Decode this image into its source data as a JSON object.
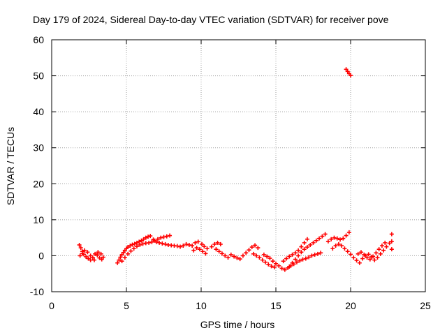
{
  "colors": {
    "series": "#ff0000",
    "grid": "#a0a0a0",
    "frame": "#000000",
    "background": "#ffffff"
  },
  "chart_data": {
    "type": "scatter",
    "title": "Day 179 of 2024, Sidereal Day-to-day VTEC variation (SDTVAR) for receiver pove",
    "xlabel": "GPS time / hours",
    "ylabel": "SDTVAR / TECUs",
    "xlim": [
      0,
      25
    ],
    "ylim": [
      -10,
      60
    ],
    "xticks": [
      0,
      5,
      10,
      15,
      20,
      25
    ],
    "yticks": [
      -10,
      0,
      10,
      20,
      30,
      40,
      50,
      60
    ],
    "xtick_labels": [
      "0",
      "5",
      "10",
      "15",
      "20",
      "25"
    ],
    "ytick_labels": [
      "-10",
      "0",
      "10",
      "20",
      "30",
      "40",
      "50",
      "60"
    ],
    "grid": true,
    "marker": "+",
    "series": [
      {
        "name": "SDTVAR",
        "points": [
          [
            1.85,
            3.0
          ],
          [
            1.95,
            2.2
          ],
          [
            2.05,
            1.2
          ],
          [
            2.15,
            0.4
          ],
          [
            2.3,
            -0.3
          ],
          [
            2.45,
            -0.8
          ],
          [
            2.6,
            -1.2
          ],
          [
            1.9,
            0.0
          ],
          [
            2.05,
            0.6
          ],
          [
            2.2,
            1.5
          ],
          [
            2.4,
            1.0
          ],
          [
            2.6,
            0.0
          ],
          [
            2.75,
            -0.5
          ],
          [
            2.9,
            0.5
          ],
          [
            3.05,
            0.2
          ],
          [
            3.2,
            -0.6
          ],
          [
            3.35,
            -1.0
          ],
          [
            3.1,
            1.0
          ],
          [
            3.3,
            0.5
          ],
          [
            2.85,
            -1.2
          ],
          [
            3.45,
            -0.4
          ],
          [
            4.4,
            -2.0
          ],
          [
            4.5,
            -1.2
          ],
          [
            4.6,
            -0.4
          ],
          [
            4.7,
            0.3
          ],
          [
            4.8,
            0.9
          ],
          [
            4.9,
            1.5
          ],
          [
            5.0,
            2.0
          ],
          [
            5.1,
            2.4
          ],
          [
            5.25,
            2.8
          ],
          [
            5.4,
            3.1
          ],
          [
            5.55,
            3.3
          ],
          [
            5.7,
            3.6
          ],
          [
            5.85,
            3.9
          ],
          [
            6.0,
            4.2
          ],
          [
            6.15,
            4.6
          ],
          [
            6.3,
            5.0
          ],
          [
            6.45,
            5.3
          ],
          [
            6.6,
            5.5
          ],
          [
            4.7,
            -1.5
          ],
          [
            4.9,
            -0.5
          ],
          [
            5.1,
            0.5
          ],
          [
            5.3,
            1.3
          ],
          [
            5.5,
            2.0
          ],
          [
            5.7,
            2.6
          ],
          [
            5.9,
            3.0
          ],
          [
            6.1,
            3.3
          ],
          [
            6.3,
            3.5
          ],
          [
            6.5,
            3.6
          ],
          [
            6.7,
            3.8
          ],
          [
            6.9,
            4.2
          ],
          [
            7.1,
            4.6
          ],
          [
            7.3,
            5.0
          ],
          [
            7.5,
            5.2
          ],
          [
            7.7,
            5.4
          ],
          [
            7.9,
            5.6
          ],
          [
            6.8,
            4.5
          ],
          [
            7.0,
            3.8
          ],
          [
            7.2,
            3.6
          ],
          [
            7.4,
            3.4
          ],
          [
            7.6,
            3.2
          ],
          [
            7.8,
            3.0
          ],
          [
            8.0,
            2.9
          ],
          [
            8.2,
            2.8
          ],
          [
            8.4,
            2.7
          ],
          [
            8.6,
            2.5
          ],
          [
            8.8,
            2.8
          ],
          [
            9.0,
            3.2
          ],
          [
            9.2,
            3.0
          ],
          [
            9.4,
            2.8
          ],
          [
            9.6,
            3.6
          ],
          [
            9.8,
            3.9
          ],
          [
            9.5,
            1.5
          ],
          [
            9.7,
            2.2
          ],
          [
            9.9,
            1.8
          ],
          [
            10.1,
            1.2
          ],
          [
            10.3,
            0.6
          ],
          [
            10.05,
            3.2
          ],
          [
            10.2,
            2.6
          ],
          [
            10.4,
            2.0
          ],
          [
            10.7,
            2.5
          ],
          [
            10.9,
            3.2
          ],
          [
            11.1,
            3.6
          ],
          [
            11.3,
            3.2
          ],
          [
            11.0,
            1.8
          ],
          [
            11.2,
            1.2
          ],
          [
            11.4,
            0.6
          ],
          [
            11.6,
            0.0
          ],
          [
            11.8,
            -0.5
          ],
          [
            12.0,
            0.3
          ],
          [
            12.2,
            -0.2
          ],
          [
            12.4,
            -0.6
          ],
          [
            12.6,
            -0.9
          ],
          [
            12.8,
            0.0
          ],
          [
            13.0,
            0.8
          ],
          [
            13.2,
            1.6
          ],
          [
            13.4,
            2.4
          ],
          [
            13.6,
            2.9
          ],
          [
            13.8,
            2.2
          ],
          [
            13.5,
            0.5
          ],
          [
            13.7,
            0.0
          ],
          [
            13.9,
            -0.5
          ],
          [
            14.1,
            -1.2
          ],
          [
            14.3,
            -1.8
          ],
          [
            14.5,
            -2.4
          ],
          [
            14.7,
            -2.9
          ],
          [
            14.9,
            -3.2
          ],
          [
            14.2,
            0.3
          ],
          [
            14.4,
            -0.2
          ],
          [
            14.6,
            -0.7
          ],
          [
            14.8,
            -1.5
          ],
          [
            15.0,
            -2.2
          ],
          [
            15.2,
            -2.8
          ],
          [
            15.4,
            -3.5
          ],
          [
            15.6,
            -3.9
          ],
          [
            15.8,
            -3.4
          ],
          [
            16.0,
            -2.8
          ],
          [
            16.2,
            -2.3
          ],
          [
            16.4,
            -1.8
          ],
          [
            16.6,
            -1.4
          ],
          [
            16.8,
            -1.0
          ],
          [
            17.0,
            -0.8
          ],
          [
            17.2,
            -0.4
          ],
          [
            17.4,
            0.0
          ],
          [
            17.6,
            0.3
          ],
          [
            17.8,
            0.5
          ],
          [
            18.0,
            0.8
          ],
          [
            15.5,
            -1.5
          ],
          [
            15.7,
            -0.8
          ],
          [
            15.9,
            -0.2
          ],
          [
            16.1,
            0.3
          ],
          [
            16.3,
            0.8
          ],
          [
            16.5,
            1.5
          ],
          [
            16.7,
            2.5
          ],
          [
            16.9,
            3.6
          ],
          [
            17.1,
            4.6
          ],
          [
            15.9,
            -3.0
          ],
          [
            16.1,
            -2.0
          ],
          [
            16.3,
            -1.0
          ],
          [
            16.5,
            0.0
          ],
          [
            16.7,
            1.0
          ],
          [
            16.9,
            1.8
          ],
          [
            17.1,
            2.4
          ],
          [
            17.3,
            3.0
          ],
          [
            17.5,
            3.6
          ],
          [
            17.7,
            4.2
          ],
          [
            17.9,
            4.8
          ],
          [
            18.1,
            5.4
          ],
          [
            18.3,
            6.0
          ],
          [
            18.5,
            4.0
          ],
          [
            18.7,
            4.6
          ],
          [
            18.9,
            5.0
          ],
          [
            19.1,
            4.8
          ],
          [
            19.3,
            4.5
          ],
          [
            19.5,
            4.8
          ],
          [
            19.7,
            5.6
          ],
          [
            19.9,
            6.5
          ],
          [
            18.8,
            2.0
          ],
          [
            19.0,
            2.8
          ],
          [
            19.2,
            3.2
          ],
          [
            19.4,
            2.8
          ],
          [
            19.6,
            2.0
          ],
          [
            19.8,
            1.2
          ],
          [
            20.0,
            0.4
          ],
          [
            20.2,
            -0.5
          ],
          [
            20.4,
            -1.3
          ],
          [
            20.6,
            -2.0
          ],
          [
            20.8,
            -0.8
          ],
          [
            21.0,
            0.0
          ],
          [
            21.2,
            0.4
          ],
          [
            21.4,
            -0.3
          ],
          [
            21.6,
            -1.2
          ],
          [
            21.8,
            -0.5
          ],
          [
            22.0,
            0.5
          ],
          [
            22.2,
            1.5
          ],
          [
            22.4,
            2.5
          ],
          [
            22.6,
            3.5
          ],
          [
            20.5,
            0.5
          ],
          [
            20.7,
            1.0
          ],
          [
            20.9,
            0.3
          ],
          [
            21.1,
            -0.5
          ],
          [
            21.3,
            -1.0
          ],
          [
            21.5,
            -0.2
          ],
          [
            21.7,
            0.8
          ],
          [
            21.9,
            1.8
          ],
          [
            22.1,
            2.8
          ],
          [
            22.3,
            3.6
          ],
          [
            22.75,
            6.0
          ],
          [
            22.75,
            4.0
          ],
          [
            22.75,
            1.8
          ],
          [
            19.7,
            51.8
          ],
          [
            19.8,
            51.2
          ],
          [
            19.9,
            50.6
          ],
          [
            20.0,
            50.1
          ]
        ]
      }
    ]
  }
}
